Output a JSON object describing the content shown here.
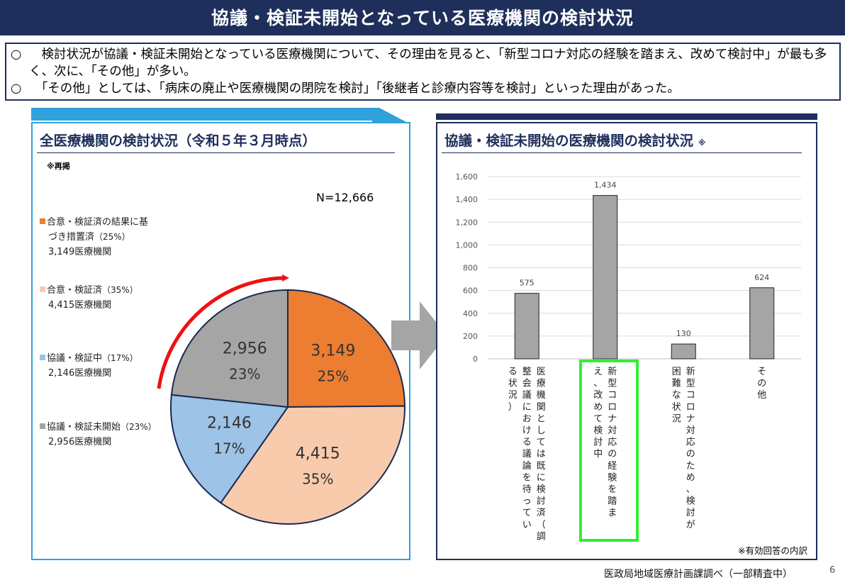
{
  "header": {
    "title": "協議・検証未開始となっている医療機関の検討状況"
  },
  "summary": [
    {
      "mark": "○",
      "text": "　検討状況が協議・検証未開始となっている医療機関について、その理由を見ると、「新型コロナ対応の経験を踏まえ、改めて検討中」が最も多く、次に、「その他」が多い。"
    },
    {
      "mark": "○",
      "text": "　「その他」としては、「病床の廃止や医療機関の閉院を検討」「後継者と診療内容等を検討」といった理由があった。"
    }
  ],
  "left_panel": {
    "title": "全医療機関の検討状況（令和５年３月時点）",
    "note": "※再掲",
    "n_label": "N=12,666",
    "legend": [
      {
        "label": "合意・検証済の結果に基",
        "label2": "づき措置済",
        "pct": "（25%）",
        "count": "3,149医療機関",
        "color": "#ed7d31"
      },
      {
        "label": "合意・検証済",
        "pct": "（35%）",
        "count": "4,415医療機関",
        "color": "#f8cbad"
      },
      {
        "label": "協議・検証中",
        "pct": "（17%）",
        "count": "2,146医療機関",
        "color": "#9dc3e6"
      },
      {
        "label": "協議・検証未開始",
        "pct": "（23%）",
        "count": "2,956医療機関",
        "color": "#a5a5a5"
      }
    ]
  },
  "right_panel": {
    "title": "協議・検証未開始の医療機関の検討状況",
    "title_mark": "※",
    "footnote": "※有効回答の内訳"
  },
  "chart_data": [
    {
      "type": "pie",
      "title": "全医療機関の検討状況（令和５年３月時点）",
      "total_label": "N=12,666",
      "slices": [
        {
          "name": "合意・検証済の結果に基づき措置済",
          "value": 3149,
          "value_label": "3,149",
          "percent_label": "25%",
          "color": "#ed7d31"
        },
        {
          "name": "合意・検証済",
          "value": 4415,
          "value_label": "4,415",
          "percent_label": "35%",
          "color": "#f8cbad"
        },
        {
          "name": "協議・検証中",
          "value": 2146,
          "value_label": "2,146",
          "percent_label": "17%",
          "color": "#9dc3e6"
        },
        {
          "name": "協議・検証未開始",
          "value": 2956,
          "value_label": "2,956",
          "percent_label": "23%",
          "color": "#a5a5a5"
        }
      ],
      "start": "12 o'clock",
      "direction": "clockwise"
    },
    {
      "type": "bar",
      "title": "協議・検証未開始の医療機関の検討状況",
      "categories": [
        "医療機関としては既に検討済（調整会議における議論を待っている状況）",
        "新型コロナ対応の経験を踏まえ、改めて検討中",
        "新型コロナ対応のため、検討が困難な状況",
        "その他"
      ],
      "category_columns": [
        [
          "医療機関としては既に検討済（調",
          "整会議における議論を待ってい",
          "る状況）"
        ],
        [
          "新型コロナ対応の経験を踏ま",
          "え、改めて検討中"
        ],
        [
          "新型コロナ対応のため、検討が",
          "困難な状況"
        ],
        [
          "その他"
        ]
      ],
      "values": [
        575,
        1434,
        130,
        624
      ],
      "value_labels": [
        "575",
        "1,434",
        "130",
        "624"
      ],
      "ylim": [
        0,
        1600
      ],
      "yticks": [
        "0",
        "200",
        "400",
        "600",
        "800",
        "1,000",
        "1,200",
        "1,400",
        "1,600"
      ],
      "grid": true,
      "bar_color": "#a5a5a5",
      "highlight_category_index": 1,
      "highlight_color": "#33ee33"
    }
  ],
  "footer": {
    "source": "医政局地域医療計画課調べ（一部精査中）",
    "page": "6"
  }
}
